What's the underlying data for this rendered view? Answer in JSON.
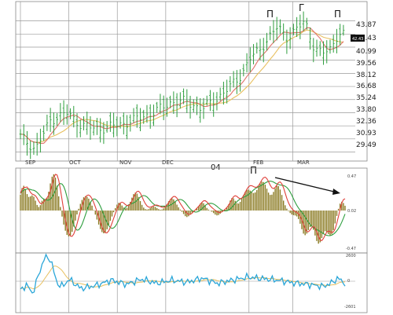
{
  "chart_data": [
    {
      "type": "line",
      "subtype": "price-bars-with-moving-averages",
      "title": "",
      "xlabel": "",
      "ylabel": "",
      "month_labels": [
        "SEP",
        "OCT",
        "NOV",
        "DEC",
        "FEB",
        "MAR"
      ],
      "year_label": "04",
      "y_ticks": [
        "43.87",
        "42.43",
        "40.99",
        "39.56",
        "38.12",
        "36.68",
        "35.24",
        "33.80",
        "32.36",
        "30.93",
        "29.49"
      ],
      "ylim": [
        28.5,
        45.3
      ],
      "last_price_label": "42.43",
      "pattern_marks": [
        "Π",
        "Γ",
        "Π"
      ],
      "close_x": [
        0,
        10,
        20,
        30,
        40,
        50,
        60,
        70,
        80,
        90,
        100,
        110,
        120,
        130,
        138,
        146,
        152,
        158,
        164,
        170,
        176,
        182,
        188,
        194,
        199,
        205,
        210,
        215
      ],
      "close": [
        31.2,
        29.8,
        33.0,
        33.8,
        32.5,
        32.0,
        32.3,
        32.7,
        33.3,
        34.0,
        35.0,
        35.0,
        34.2,
        35.4,
        36.5,
        38.0,
        39.8,
        40.7,
        42.0,
        43.2,
        42.1,
        42.8,
        43.9,
        41.0,
        40.2,
        40.9,
        42.5,
        42.2
      ],
      "grid": true,
      "series": [
        {
          "values": "price bars",
          "color": "#2e9e3e"
        },
        {
          "values": "moving average (fast)",
          "color": "#e0726a"
        },
        {
          "values": "moving average (slow)",
          "color": "#e8c060"
        }
      ]
    },
    {
      "type": "bar",
      "subtype": "macd-histogram",
      "right_labels": [
        "0.47",
        "0.02",
        "-0.47"
      ],
      "ylim": [
        -0.52,
        0.52
      ],
      "colors": {
        "histogram": "#8a7a22",
        "macd": "#e0403a",
        "signal": "#2e9e3e"
      },
      "annotation": "trend arrow"
    },
    {
      "type": "line",
      "subtype": "oscillator",
      "right_labels": [
        "2600",
        "0",
        "-2601"
      ],
      "ylim": [
        -2700,
        2700
      ],
      "colors": {
        "oscillator": "#2aa6d8",
        "signal": "#e8c060"
      }
    }
  ]
}
